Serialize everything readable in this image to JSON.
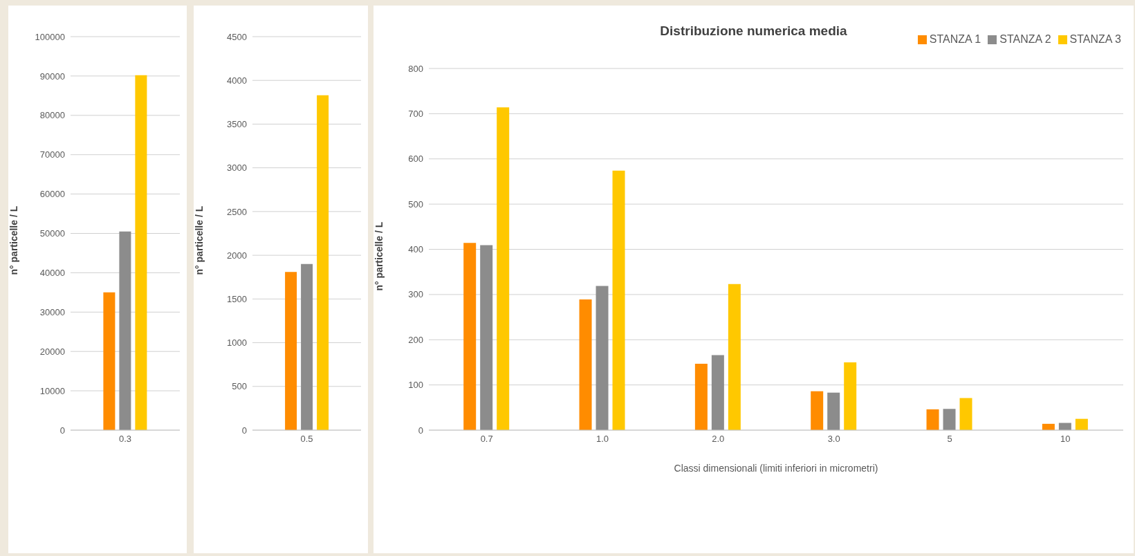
{
  "chart_data": [
    {
      "type": "bar",
      "ylabel": "n° particelle / L",
      "categories": [
        "0.3"
      ],
      "series": [
        {
          "color": "#ff8c00",
          "values": [
            35000
          ]
        },
        {
          "color": "#8c8c8c",
          "values": [
            50500
          ]
        },
        {
          "color": "#ffc800",
          "values": [
            90200
          ]
        }
      ],
      "ylim": [
        0,
        100000
      ],
      "yticks": [
        0,
        10000,
        20000,
        30000,
        40000,
        50000,
        60000,
        70000,
        80000,
        90000,
        100000
      ],
      "grid": "y"
    },
    {
      "type": "bar",
      "ylabel": "n° particelle / L",
      "categories": [
        "0.5"
      ],
      "series": [
        {
          "color": "#ff8c00",
          "values": [
            1810
          ]
        },
        {
          "color": "#8c8c8c",
          "values": [
            1900
          ]
        },
        {
          "color": "#ffc800",
          "values": [
            3830
          ]
        }
      ],
      "ylim": [
        0,
        4500
      ],
      "yticks": [
        0,
        500,
        1000,
        1500,
        2000,
        2500,
        3000,
        3500,
        4000,
        4500
      ],
      "grid": "y"
    },
    {
      "type": "bar",
      "title": "Distribuzione numerica media",
      "xlabel": "Classi dimensionali (limiti inferiori in micrometri)",
      "ylabel": "n° particelle / L",
      "categories": [
        "0.7",
        "1.0",
        "2.0",
        "3.0",
        "5",
        "10"
      ],
      "series": [
        {
          "name": "STANZA 1",
          "color": "#ff8c00",
          "values": [
            414,
            289,
            147,
            86,
            46,
            14
          ]
        },
        {
          "name": "STANZA 2",
          "color": "#8c8c8c",
          "values": [
            409,
            319,
            166,
            83,
            47,
            16
          ]
        },
        {
          "name": "STANZA 3",
          "color": "#ffc800",
          "values": [
            714,
            574,
            323,
            150,
            71,
            25
          ]
        }
      ],
      "ylim": [
        0,
        800
      ],
      "yticks": [
        0,
        100,
        200,
        300,
        400,
        500,
        600,
        700,
        800
      ],
      "grid": "y",
      "legend": "top right"
    }
  ]
}
